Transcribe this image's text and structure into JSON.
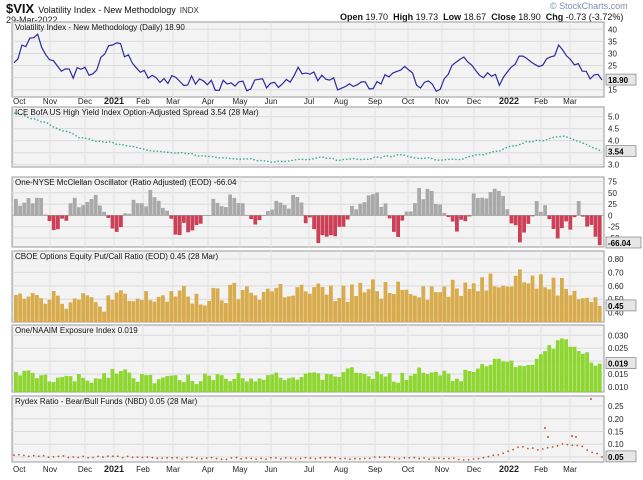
{
  "header": {
    "symbol": "$VIX",
    "name": "Volatility Index - New Methodology",
    "exchange": "INDX",
    "date": "29-Mar-2022",
    "open_label": "Open",
    "open": "19.70",
    "high_label": "High",
    "high": "19.73",
    "low_label": "Low",
    "low": "18.67",
    "close_label": "Close",
    "close": "18.90",
    "chg_label": "Chg",
    "chg": "-0.73 (-3.72%)",
    "brand": "© StockCharts.com"
  },
  "x_labels": [
    "Oct",
    "Nov",
    "Dec",
    "2021",
    "Feb",
    "Mar",
    "Apr",
    "May",
    "Jun",
    "Jul",
    "Aug",
    "Sep",
    "Oct",
    "Nov",
    "Dec",
    "2022",
    "Feb",
    "Mar"
  ],
  "colors": {
    "vix": "#2b2b9e",
    "hy": "#3aa698",
    "mcc_pos": "#a9a9a9",
    "mcc_neg": "#cc4057",
    "putcall": "#d8ac4c",
    "naaim": "#8ed630",
    "rydex": "#c0552f",
    "panel_bg": "#f3f3f3",
    "last_label_bg": "#e6e6e6"
  },
  "chart_data": [
    {
      "type": "line",
      "title": "Volatility Index - New Methodology (Daily) 18.90",
      "last_value_label": "18.90",
      "y_ticks": [
        "40",
        "35",
        "30",
        "25",
        "20",
        "15"
      ],
      "ylim": [
        12,
        43
      ],
      "grid": true,
      "monthly_values": [
        27,
        38,
        24,
        22,
        23,
        36,
        24,
        21,
        18,
        19,
        17,
        16,
        17,
        18,
        22,
        20,
        17,
        16,
        18,
        25,
        17,
        16,
        29,
        20,
        19,
        31,
        26,
        34,
        24,
        19
      ]
    },
    {
      "type": "line",
      "title": "ICE BofA US High Yield Index Option-Adjusted Spread 3.54 (28 Mar)",
      "last_value_label": "3.54",
      "y_ticks": [
        "5.0",
        "4.5",
        "4.0",
        "3.5",
        "3.0"
      ],
      "ylim": [
        2.9,
        5.4
      ],
      "grid": true,
      "monthly_values": [
        5.2,
        4.9,
        4.6,
        4.2,
        4.0,
        3.9,
        3.7,
        3.6,
        3.5,
        3.4,
        3.3,
        3.2,
        3.2,
        3.1,
        3.2,
        3.3,
        3.2,
        3.2,
        3.3,
        3.4,
        3.3,
        3.2,
        3.2,
        3.4,
        3.6,
        3.9,
        4.0,
        4.2,
        3.9,
        3.54
      ]
    },
    {
      "type": "bar",
      "title": "One-NYSE McClellan Oscillator (Ratio Adjusted) (EOD) -66.04",
      "last_value_label": "-66.04",
      "y_ticks": [
        "75",
        "50",
        "25",
        "0",
        "-25",
        "-50"
      ],
      "ylim": [
        -70,
        85
      ],
      "grid": true,
      "monthly_values": [
        20,
        45,
        -35,
        30,
        45,
        -40,
        35,
        40,
        -30,
        -20,
        40,
        30,
        -35,
        35,
        25,
        -45,
        -30,
        30,
        40,
        -40,
        60,
        25,
        -35,
        55,
        45,
        -45,
        30,
        -55,
        20,
        -66
      ]
    },
    {
      "type": "bar",
      "title": "CBOE Options Equity Put/Call Ratio (EOD) 0.45 (28 Mar)",
      "last_value_label": "0.45",
      "y_ticks": [
        "0.80",
        "0.70",
        "0.60",
        "0.50",
        "0.40"
      ],
      "ylim": [
        0.33,
        0.86
      ],
      "grid": true,
      "monthly_values": [
        0.58,
        0.55,
        0.52,
        0.49,
        0.47,
        0.5,
        0.48,
        0.52,
        0.53,
        0.5,
        0.51,
        0.55,
        0.55,
        0.57,
        0.56,
        0.55,
        0.53,
        0.56,
        0.58,
        0.6,
        0.58,
        0.55,
        0.6,
        0.62,
        0.65,
        0.68,
        0.62,
        0.6,
        0.55,
        0.45
      ]
    },
    {
      "type": "bar",
      "title": "One/NAAIM Exposure Index 0.019",
      "last_value_label": "0.019",
      "y_ticks": [
        "0.030",
        "0.025",
        "0.020",
        "0.015",
        "0.010"
      ],
      "ylim": [
        0.008,
        0.034
      ],
      "grid": true,
      "monthly_values": [
        0.016,
        0.014,
        0.013,
        0.013,
        0.013,
        0.017,
        0.014,
        0.013,
        0.013,
        0.013,
        0.014,
        0.014,
        0.014,
        0.015,
        0.013,
        0.014,
        0.015,
        0.016,
        0.014,
        0.013,
        0.017,
        0.015,
        0.013,
        0.019,
        0.021,
        0.018,
        0.021,
        0.028,
        0.024,
        0.019
      ]
    },
    {
      "type": "scatter",
      "title": "Rydex Ratio - Bear/Bull Funds (NBD) 0.05 (28 Mar)",
      "last_value_label": "0.05",
      "y_ticks": [
        "0.25",
        "0.20",
        "0.15",
        "0.10",
        "0.05"
      ],
      "ylim": [
        0.03,
        0.29
      ],
      "grid": true,
      "monthly_values": [
        0.06,
        0.055,
        0.05,
        0.05,
        0.048,
        0.05,
        0.048,
        0.045,
        0.045,
        0.045,
        0.044,
        0.044,
        0.045,
        0.045,
        0.044,
        0.044,
        0.045,
        0.045,
        0.046,
        0.046,
        0.045,
        0.044,
        0.04,
        0.045,
        0.06,
        0.09,
        0.08,
        0.1,
        0.09,
        0.05
      ]
    }
  ]
}
